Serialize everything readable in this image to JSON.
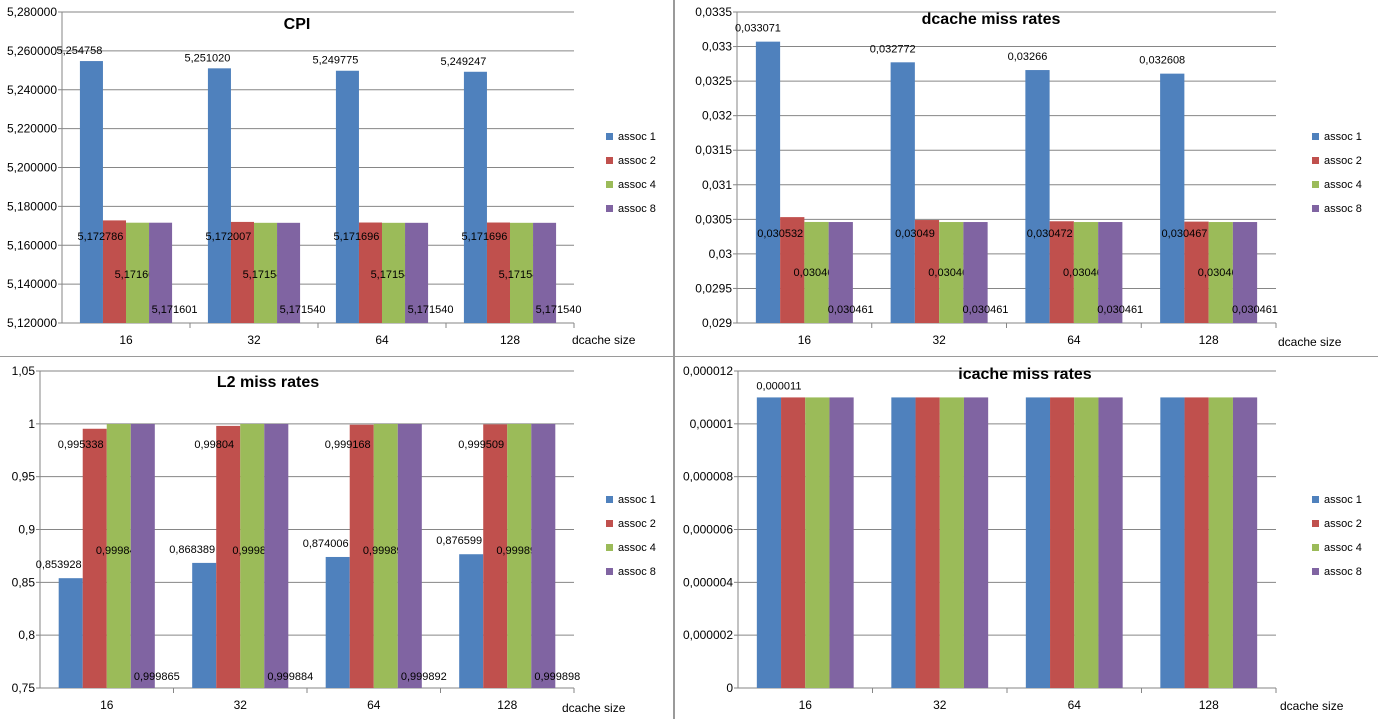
{
  "chart_data": [
    {
      "type": "bar",
      "title": "CPI",
      "xlabel": "dcache size",
      "ylabel": "",
      "categories": [
        "16",
        "32",
        "64",
        "128"
      ],
      "ylim": [
        5.12,
        5.28
      ],
      "yticks": [
        "5,120000",
        "5,140000",
        "5,160000",
        "5,180000",
        "5,200000",
        "5,220000",
        "5,240000",
        "5,260000",
        "5,280000"
      ],
      "grid": true,
      "legend": "right",
      "series": [
        {
          "name": "assoc 1",
          "color": "#4F81BD",
          "values": [
            5.254758,
            5.25102,
            5.249775,
            5.249247
          ],
          "labels": [
            "5,254758",
            "5,251020",
            "5,249775",
            "5,249247"
          ]
        },
        {
          "name": "assoc 2",
          "color": "#C0504D",
          "values": [
            5.172786,
            5.172007,
            5.171696,
            5.171696
          ],
          "labels": [
            "5,172786",
            "5,172007",
            "5,171696",
            "5,171696"
          ]
        },
        {
          "name": "assoc 4",
          "color": "#9BBB59",
          "values": [
            5.171601,
            5.17154,
            5.17154,
            5.17154
          ],
          "labels": [
            "5,171601",
            "5,171540",
            "5,171540",
            "5,171540"
          ]
        },
        {
          "name": "assoc 8",
          "color": "#8064A2",
          "values": [
            5.171601,
            5.17154,
            5.17154,
            5.17154
          ],
          "labels": [
            "5,171601",
            "5,171540",
            "5,171540",
            "5,171540"
          ]
        }
      ]
    },
    {
      "type": "bar",
      "title": "dcache miss rates",
      "xlabel": "dcache size",
      "ylabel": "",
      "categories": [
        "16",
        "32",
        "64",
        "128"
      ],
      "ylim": [
        0.029,
        0.0335
      ],
      "yticks": [
        "0,029",
        "0,0295",
        "0,03",
        "0,0305",
        "0,031",
        "0,0315",
        "0,032",
        "0,0325",
        "0,033",
        "0,0335"
      ],
      "grid": true,
      "legend": "right",
      "series": [
        {
          "name": "assoc 1",
          "color": "#4F81BD",
          "values": [
            0.033071,
            0.032772,
            0.03266,
            0.032608
          ],
          "labels": [
            "0,033071",
            "0,032772",
            "0,03266",
            "0,032608"
          ]
        },
        {
          "name": "assoc 2",
          "color": "#C0504D",
          "values": [
            0.030532,
            0.03049,
            0.030472,
            0.030467
          ],
          "labels": [
            "0,030532",
            "0,03049",
            "0,030472",
            "0,030467"
          ]
        },
        {
          "name": "assoc 4",
          "color": "#9BBB59",
          "values": [
            0.030462,
            0.030461,
            0.030461,
            0.030461
          ],
          "labels": [
            "0,030462",
            "0,030461",
            "0,030461",
            "0,030461"
          ]
        },
        {
          "name": "assoc 8",
          "color": "#8064A2",
          "values": [
            0.030461,
            0.030461,
            0.030461,
            0.030461
          ],
          "labels": [
            "0,030461",
            "0,030461",
            "0,030461",
            "0,030461"
          ]
        }
      ]
    },
    {
      "type": "bar",
      "title": "L2 miss rates",
      "xlabel": "dcache size",
      "ylabel": "",
      "categories": [
        "16",
        "32",
        "64",
        "128"
      ],
      "ylim": [
        0.75,
        1.05
      ],
      "yticks": [
        "0,75",
        "0,8",
        "0,85",
        "0,9",
        "0,95",
        "1",
        "1,05"
      ],
      "grid": true,
      "legend": "right",
      "series": [
        {
          "name": "assoc 1",
          "color": "#4F81BD",
          "values": [
            0.853928,
            0.868389,
            0.874006,
            0.876599
          ],
          "labels": [
            "0,853928",
            "0,868389",
            "0,874006",
            "0,876599"
          ]
        },
        {
          "name": "assoc 2",
          "color": "#C0504D",
          "values": [
            0.995338,
            0.99804,
            0.999168,
            0.999509
          ],
          "labels": [
            "0,995338",
            "0,99804",
            "0,999168",
            "0,999509"
          ]
        },
        {
          "name": "assoc 4",
          "color": "#9BBB59",
          "values": [
            0.999847,
            0.99988,
            0.999891,
            0.999897
          ],
          "labels": [
            "0,999847",
            "0,99988",
            "0,999891",
            "0,999897"
          ]
        },
        {
          "name": "assoc 8",
          "color": "#8064A2",
          "values": [
            0.999865,
            0.999884,
            0.999892,
            0.999898
          ],
          "labels": [
            "0,999865",
            "0,999884",
            "0,999892",
            "0,999898"
          ]
        }
      ]
    },
    {
      "type": "bar",
      "title": "icache miss rates",
      "xlabel": "dcache size",
      "ylabel": "",
      "categories": [
        "16",
        "32",
        "64",
        "128"
      ],
      "ylim": [
        0,
        1.2e-05
      ],
      "yticks": [
        "0",
        "0,000002",
        "0,000004",
        "0,000006",
        "0,000008",
        "0,00001",
        "0,000012"
      ],
      "grid": true,
      "legend": "right",
      "series": [
        {
          "name": "assoc 1",
          "color": "#4F81BD",
          "values": [
            1.1e-05,
            1.1e-05,
            1.1e-05,
            1.1e-05
          ],
          "labels": [
            "0,000011",
            "",
            "",
            ""
          ]
        },
        {
          "name": "assoc 2",
          "color": "#C0504D",
          "values": [
            1.1e-05,
            1.1e-05,
            1.1e-05,
            1.1e-05
          ],
          "labels": [
            "",
            "",
            "",
            ""
          ]
        },
        {
          "name": "assoc 4",
          "color": "#9BBB59",
          "values": [
            1.1e-05,
            1.1e-05,
            1.1e-05,
            1.1e-05
          ],
          "labels": [
            "",
            "",
            "",
            ""
          ]
        },
        {
          "name": "assoc 8",
          "color": "#8064A2",
          "values": [
            1.1e-05,
            1.1e-05,
            1.1e-05,
            1.1e-05
          ],
          "labels": [
            "",
            "",
            "",
            ""
          ]
        }
      ]
    }
  ]
}
